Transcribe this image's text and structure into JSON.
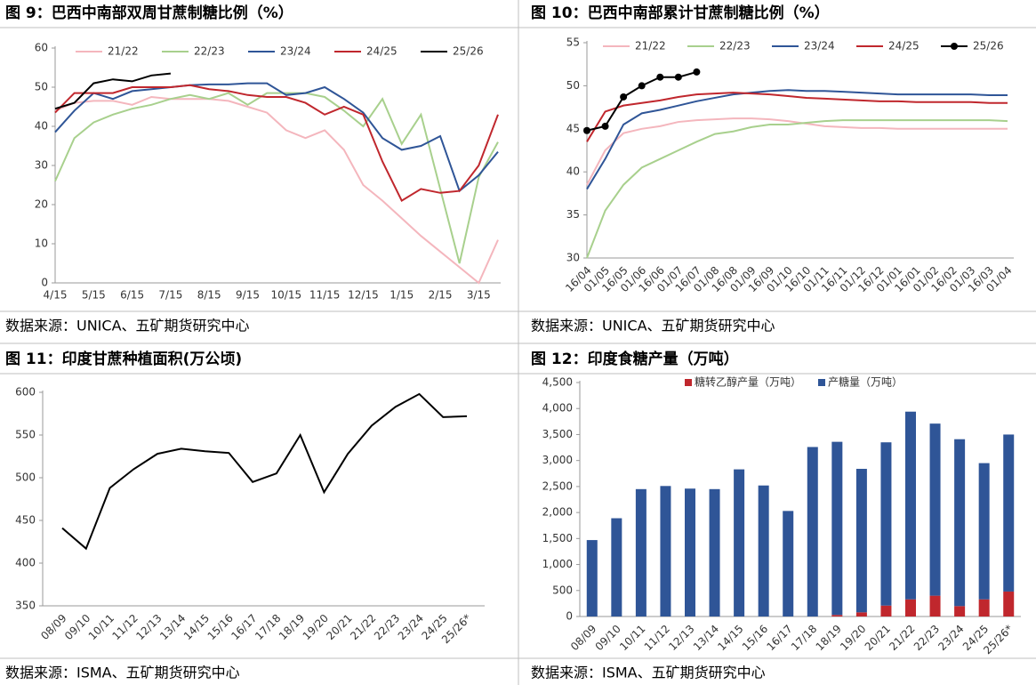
{
  "chart_data": [
    {
      "type": "line",
      "title": "图 9：巴西中南部双周甘蔗制糖比例（%）",
      "source": "数据来源：UNICA、五矿期货研究中心",
      "categories": [
        "4/15",
        null,
        "5/15",
        null,
        "6/15",
        null,
        "7/15",
        null,
        "8/15",
        null,
        "9/15",
        null,
        "10/15",
        null,
        "11/15",
        null,
        "12/15",
        null,
        "1/15",
        null,
        "2/15",
        null,
        "3/15",
        null
      ],
      "ylim": [
        0,
        60
      ],
      "yticks": [
        0,
        10,
        20,
        30,
        40,
        50,
        60
      ],
      "series": [
        {
          "name": "21/22",
          "color": "#f4b6bd",
          "values": [
            44,
            46,
            46.5,
            46.5,
            45.5,
            47.5,
            47,
            47,
            47,
            46.5,
            45,
            43.5,
            39,
            37,
            39,
            34,
            25,
            21,
            16.5,
            12,
            8,
            4,
            0,
            11
          ]
        },
        {
          "name": "22/23",
          "color": "#a8d08d",
          "values": [
            26,
            37,
            41,
            43,
            44.5,
            45.5,
            47,
            48,
            47,
            48.5,
            45.5,
            48.5,
            48.5,
            48.5,
            47.5,
            44,
            40,
            47,
            35.5,
            43,
            24,
            5,
            27,
            36
          ]
        },
        {
          "name": "23/24",
          "color": "#2f5597",
          "values": [
            38.5,
            44,
            48.5,
            47,
            49,
            49.5,
            50,
            50.5,
            50.7,
            50.7,
            51,
            51,
            48,
            48.5,
            50,
            47,
            43.5,
            37,
            34,
            35,
            37.5,
            23.5,
            27.5,
            33.5
          ]
        },
        {
          "name": "24/25",
          "color": "#c0272d",
          "values": [
            43.5,
            48.5,
            48.5,
            48.5,
            50,
            50,
            50,
            50.5,
            49.5,
            49,
            48,
            47.5,
            47.5,
            46,
            43,
            45,
            43,
            31,
            21,
            24,
            23,
            23.5,
            30,
            43
          ]
        },
        {
          "name": "25/26",
          "color": "#000000",
          "values": [
            44.5,
            46,
            51,
            52,
            51.5,
            53,
            53.5,
            null,
            null,
            null,
            null,
            null,
            null,
            null,
            null,
            null,
            null,
            null,
            null,
            null,
            null,
            null,
            null,
            null
          ]
        }
      ]
    },
    {
      "type": "line",
      "title": "图 10：巴西中南部累计甘蔗制糖比例（%）",
      "source": "数据来源：UNICA、五矿期货研究中心",
      "categories": [
        "16/04",
        "01/05",
        "16/05",
        "01/06",
        "16/06",
        "01/07",
        "16/07",
        "01/08",
        "16/08",
        "01/09",
        "16/09",
        "01/10",
        "16/10",
        "01/11",
        "16/11",
        "01/12",
        "16/12",
        "01/01",
        "16/01",
        "01/02",
        "16/02",
        "01/03",
        "16/03",
        "01/04"
      ],
      "ylim": [
        30,
        55
      ],
      "yticks": [
        30,
        35,
        40,
        45,
        50,
        55
      ],
      "series": [
        {
          "name": "21/22",
          "color": "#f4b6bd",
          "values": [
            38.5,
            42.5,
            44.5,
            45,
            45.3,
            45.8,
            46,
            46.1,
            46.2,
            46.2,
            46.1,
            45.9,
            45.6,
            45.3,
            45.2,
            45.1,
            45.1,
            45,
            45,
            45,
            45,
            45,
            45,
            45
          ]
        },
        {
          "name": "22/23",
          "color": "#a8d08d",
          "values": [
            30,
            35.5,
            38.5,
            40.5,
            41.5,
            42.5,
            43.5,
            44.4,
            44.7,
            45.2,
            45.5,
            45.5,
            45.7,
            45.9,
            46,
            46,
            46,
            46,
            46,
            46,
            46,
            46,
            46,
            45.9
          ]
        },
        {
          "name": "23/24",
          "color": "#2f5597",
          "values": [
            38,
            41.5,
            45.5,
            46.8,
            47.2,
            47.7,
            48.2,
            48.6,
            49,
            49.2,
            49.4,
            49.5,
            49.4,
            49.4,
            49.3,
            49.2,
            49.1,
            49,
            49,
            49,
            49,
            49,
            48.9,
            48.9
          ]
        },
        {
          "name": "24/25",
          "color": "#c0272d",
          "values": [
            43.5,
            47,
            47.7,
            48,
            48.3,
            48.7,
            49,
            49.1,
            49.2,
            49.1,
            49,
            48.8,
            48.6,
            48.5,
            48.4,
            48.3,
            48.2,
            48.2,
            48.1,
            48.1,
            48.1,
            48.1,
            48,
            48
          ]
        },
        {
          "name": "25/26",
          "color": "#000000",
          "marker": "circle",
          "values": [
            44.8,
            45.3,
            48.7,
            50,
            51,
            51,
            51.6,
            null,
            null,
            null,
            null,
            null,
            null,
            null,
            null,
            null,
            null,
            null,
            null,
            null,
            null,
            null,
            null,
            null
          ]
        }
      ]
    },
    {
      "type": "line",
      "title": "图 11：印度甘蔗种植面积(万公顷)",
      "source": "数据来源：ISMA、五矿期货研究中心",
      "categories": [
        "08/09",
        "09/10",
        "10/11",
        "11/12",
        "12/13",
        "13/14",
        "14/15",
        "15/16",
        "16/17",
        "17/18",
        "18/19",
        "19/20",
        "20/21",
        "21/22",
        "22/23",
        "23/24",
        "24/25",
        "25/26*"
      ],
      "ylim": [
        350,
        600
      ],
      "yticks": [
        350,
        400,
        450,
        500,
        550,
        600
      ],
      "series": [
        {
          "color": "#000000",
          "values": [
            441,
            417,
            488,
            510,
            528,
            534,
            531,
            529,
            495,
            505,
            550,
            483,
            528,
            561,
            583,
            598,
            571,
            572
          ]
        }
      ]
    },
    {
      "type": "bar",
      "stacked": true,
      "title": "图 12：印度食糖产量（万吨）",
      "source": "数据来源：ISMA、五矿期货研究中心",
      "categories": [
        "08/09",
        "09/10",
        "10/11",
        "11/12",
        "12/13",
        "13/14",
        "14/15",
        "15/16",
        "16/17",
        "17/18",
        "18/19",
        "19/20",
        "20/21",
        "21/22",
        "22/23",
        "23/24",
        "24/25",
        "25/26*"
      ],
      "ylim": [
        0,
        4500
      ],
      "yticks": [
        0,
        500,
        {
          "value": 1000,
          "label": "1,000"
        },
        {
          "value": 1500,
          "label": "1,500"
        },
        {
          "value": 2000,
          "label": "2,000"
        },
        {
          "value": 2500,
          "label": "2,500"
        },
        {
          "value": 3000,
          "label": "3,000"
        },
        {
          "value": 3500,
          "label": "3,500"
        },
        {
          "value": 4000,
          "label": "4,000"
        },
        {
          "value": 4500,
          "label": "4,500"
        }
      ],
      "series": [
        {
          "name": "糖转乙醇产量（万吨）",
          "color": "#c0272d",
          "values": [
            0,
            0,
            0,
            0,
            0,
            0,
            0,
            0,
            0,
            0,
            30,
            80,
            210,
            330,
            400,
            200,
            330,
            480
          ]
        },
        {
          "name": "产糖量（万吨）",
          "color": "#2f5597",
          "values": [
            1470,
            1890,
            2450,
            2510,
            2460,
            2450,
            2830,
            2520,
            2030,
            3260,
            3330,
            2760,
            3140,
            3610,
            3310,
            3210,
            2620,
            3020
          ]
        }
      ]
    }
  ]
}
